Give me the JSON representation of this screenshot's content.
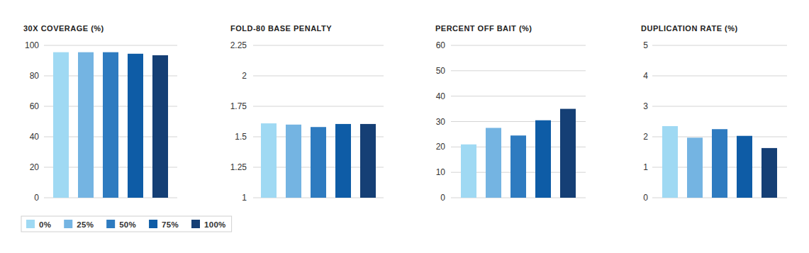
{
  "chart_data": [
    {
      "type": "bar",
      "title": "30X COVERAGE (%)",
      "categories": [
        null
      ],
      "series": [
        {
          "name": "0%",
          "color": "#9fd9f3",
          "values": [
            95.5
          ]
        },
        {
          "name": "25%",
          "color": "#74b4e2",
          "values": [
            95.5
          ]
        },
        {
          "name": "50%",
          "color": "#2e7bc0",
          "values": [
            95.5
          ]
        },
        {
          "name": "75%",
          "color": "#0e5ca6",
          "values": [
            94.5
          ]
        },
        {
          "name": "100%",
          "color": "#153f75",
          "values": [
            93.5
          ]
        }
      ],
      "ylim": [
        0,
        100
      ],
      "yticks": [
        0,
        20,
        40,
        60,
        80,
        100
      ],
      "grid": true,
      "legend": "bottom left",
      "tick_labels": "y"
    },
    {
      "type": "bar",
      "title": "FOLD-80 BASE PENALTY",
      "categories": [
        null
      ],
      "series": [
        {
          "color": "#9fd9f3",
          "values": [
            1.61
          ]
        },
        {
          "color": "#74b4e2",
          "values": [
            1.6
          ]
        },
        {
          "color": "#2e7bc0",
          "values": [
            1.58
          ]
        },
        {
          "color": "#0e5ca6",
          "values": [
            1.605
          ]
        },
        {
          "color": "#153f75",
          "values": [
            1.605
          ]
        }
      ],
      "ylim": [
        1,
        2.25
      ],
      "yticks": [
        1,
        1.25,
        1.5,
        1.75,
        2,
        2.25
      ],
      "grid": true,
      "tick_labels": "y"
    },
    {
      "type": "bar",
      "title": "PERCENT OFF BAIT (%)",
      "categories": [
        null
      ],
      "series": [
        {
          "color": "#9fd9f3",
          "values": [
            21
          ]
        },
        {
          "color": "#74b4e2",
          "values": [
            27.5
          ]
        },
        {
          "color": "#2e7bc0",
          "values": [
            24.5
          ]
        },
        {
          "color": "#0e5ca6",
          "values": [
            30.5
          ]
        },
        {
          "color": "#153f75",
          "values": [
            35
          ]
        }
      ],
      "ylim": [
        0,
        60
      ],
      "yticks": [
        0,
        10,
        20,
        30,
        40,
        50,
        60
      ],
      "grid": true,
      "tick_labels": "y"
    },
    {
      "type": "bar",
      "title": "DUPLICATION RATE (%)",
      "categories": [
        null
      ],
      "series": [
        {
          "color": "#9fd9f3",
          "values": [
            2.35
          ]
        },
        {
          "color": "#74b4e2",
          "values": [
            1.97
          ]
        },
        {
          "color": "#2e7bc0",
          "values": [
            2.25
          ]
        },
        {
          "color": "#0e5ca6",
          "values": [
            2.03
          ]
        },
        {
          "color": "#153f75",
          "values": [
            1.63
          ]
        }
      ],
      "ylim": [
        0,
        5
      ],
      "yticks": [
        0,
        1,
        2,
        3,
        4,
        5
      ],
      "grid": true,
      "tick_labels": "y"
    }
  ]
}
